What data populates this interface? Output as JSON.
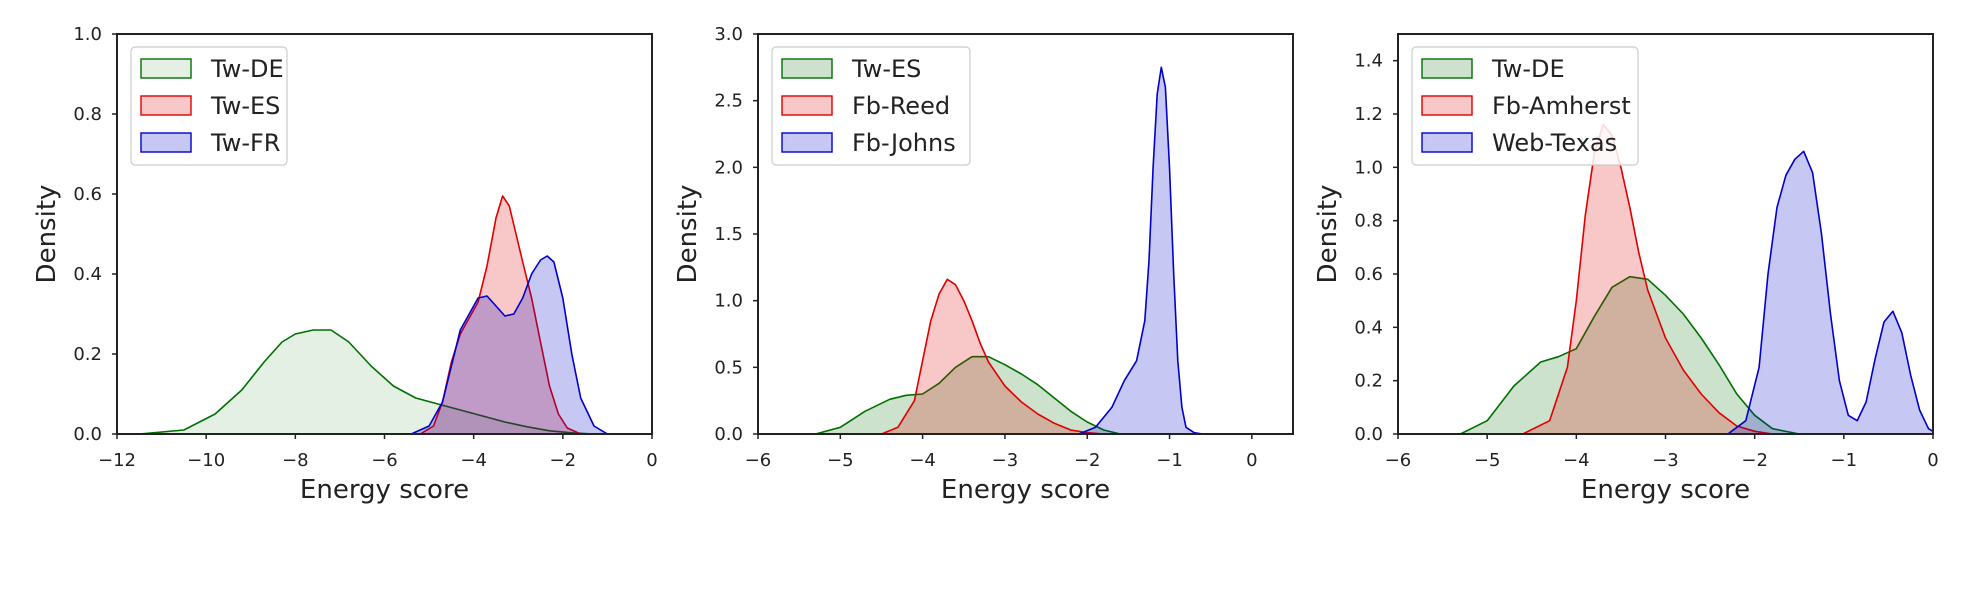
{
  "chart_data": [
    {
      "type": "area",
      "xlabel": "Energy score",
      "ylabel": "Density",
      "xlim": [
        -12,
        0
      ],
      "ylim": [
        0,
        1.0
      ],
      "xticks": [
        -12,
        -10,
        -8,
        -6,
        -4,
        -2,
        0
      ],
      "xtick_labels": [
        "−12",
        "−10",
        "−8",
        "−6",
        "−4",
        "−2",
        "0"
      ],
      "yticks": [
        0.0,
        0.2,
        0.4,
        0.6,
        0.8,
        1.0
      ],
      "ytick_labels": [
        "0.0",
        "0.2",
        "0.4",
        "0.6",
        "0.8",
        "1.0"
      ],
      "legend_position": "top-left",
      "grid": false,
      "series": [
        {
          "name": "Tw-DE",
          "color": "#007000",
          "fill_opacity": 0.1,
          "x": [
            -11.5,
            -10.5,
            -9.8,
            -9.2,
            -8.7,
            -8.3,
            -8.0,
            -7.6,
            -7.2,
            -6.8,
            -6.3,
            -5.8,
            -5.3,
            -4.8,
            -4.3,
            -3.8,
            -3.3,
            -2.8,
            -2.3,
            -1.8,
            -1.3
          ],
          "y": [
            0.0,
            0.01,
            0.05,
            0.11,
            0.18,
            0.23,
            0.25,
            0.26,
            0.26,
            0.23,
            0.17,
            0.12,
            0.09,
            0.075,
            0.06,
            0.045,
            0.03,
            0.018,
            0.008,
            0.003,
            0.0
          ]
        },
        {
          "name": "Tw-ES",
          "color": "#e00000",
          "fill_opacity": 0.22,
          "x": [
            -5.2,
            -4.9,
            -4.7,
            -4.5,
            -4.3,
            -4.1,
            -3.9,
            -3.7,
            -3.5,
            -3.35,
            -3.2,
            -3.05,
            -2.9,
            -2.7,
            -2.5,
            -2.3,
            -2.1,
            -1.9,
            -1.6
          ],
          "y": [
            0.0,
            0.02,
            0.08,
            0.18,
            0.25,
            0.29,
            0.33,
            0.42,
            0.54,
            0.595,
            0.57,
            0.5,
            0.43,
            0.34,
            0.23,
            0.12,
            0.05,
            0.015,
            0.0
          ]
        },
        {
          "name": "Tw-FR",
          "color": "#0000cc",
          "fill_opacity": 0.22,
          "x": [
            -5.4,
            -5.0,
            -4.7,
            -4.5,
            -4.3,
            -4.1,
            -3.9,
            -3.7,
            -3.5,
            -3.3,
            -3.1,
            -2.9,
            -2.7,
            -2.5,
            -2.35,
            -2.2,
            -2.0,
            -1.8,
            -1.6,
            -1.3,
            -1.0
          ],
          "y": [
            0.0,
            0.02,
            0.08,
            0.17,
            0.26,
            0.3,
            0.34,
            0.345,
            0.32,
            0.295,
            0.3,
            0.34,
            0.4,
            0.435,
            0.445,
            0.43,
            0.34,
            0.2,
            0.09,
            0.02,
            0.0
          ]
        }
      ]
    },
    {
      "type": "area",
      "xlabel": "Energy score",
      "ylabel": "Density",
      "xlim": [
        -6,
        0.5
      ],
      "ylim": [
        0,
        3.0
      ],
      "xticks": [
        -6,
        -5,
        -4,
        -3,
        -2,
        -1,
        0
      ],
      "xtick_labels": [
        "−6",
        "−5",
        "−4",
        "−3",
        "−2",
        "−1",
        "0"
      ],
      "yticks": [
        0.0,
        0.5,
        1.0,
        1.5,
        2.0,
        2.5,
        3.0
      ],
      "ytick_labels": [
        "0.0",
        "0.5",
        "1.0",
        "1.5",
        "2.0",
        "2.5",
        "3.0"
      ],
      "legend_position": "top-left",
      "grid": false,
      "series": [
        {
          "name": "Tw-ES",
          "color": "#007000",
          "fill_opacity": 0.2,
          "x": [
            -5.3,
            -5.0,
            -4.7,
            -4.4,
            -4.2,
            -4.0,
            -3.8,
            -3.6,
            -3.4,
            -3.2,
            -3.0,
            -2.8,
            -2.6,
            -2.4,
            -2.2,
            -2.0,
            -1.8,
            -1.6
          ],
          "y": [
            0.0,
            0.05,
            0.17,
            0.26,
            0.29,
            0.3,
            0.38,
            0.5,
            0.58,
            0.58,
            0.52,
            0.45,
            0.37,
            0.27,
            0.17,
            0.09,
            0.03,
            0.0
          ]
        },
        {
          "name": "Fb-Reed",
          "color": "#e00000",
          "fill_opacity": 0.22,
          "x": [
            -4.5,
            -4.3,
            -4.1,
            -4.0,
            -3.9,
            -3.8,
            -3.7,
            -3.6,
            -3.5,
            -3.4,
            -3.3,
            -3.2,
            -3.0,
            -2.8,
            -2.6,
            -2.4,
            -2.2,
            -2.0,
            -1.8
          ],
          "y": [
            0.0,
            0.05,
            0.25,
            0.55,
            0.85,
            1.05,
            1.16,
            1.12,
            1.0,
            0.85,
            0.68,
            0.54,
            0.36,
            0.24,
            0.15,
            0.08,
            0.03,
            0.01,
            0.0
          ]
        },
        {
          "name": "Fb-Johns",
          "color": "#0000cc",
          "fill_opacity": 0.22,
          "x": [
            -2.1,
            -1.9,
            -1.7,
            -1.55,
            -1.4,
            -1.3,
            -1.25,
            -1.2,
            -1.15,
            -1.1,
            -1.05,
            -1.0,
            -0.95,
            -0.9,
            -0.85,
            -0.8,
            -0.7,
            -0.6
          ],
          "y": [
            0.0,
            0.05,
            0.2,
            0.4,
            0.55,
            0.85,
            1.3,
            2.0,
            2.55,
            2.75,
            2.6,
            2.0,
            1.2,
            0.55,
            0.2,
            0.05,
            0.01,
            0.0
          ]
        }
      ]
    },
    {
      "type": "area",
      "xlabel": "Energy score",
      "ylabel": "Density",
      "xlim": [
        -6,
        0
      ],
      "ylim": [
        0,
        1.5
      ],
      "xticks": [
        -6,
        -5,
        -4,
        -3,
        -2,
        -1,
        0
      ],
      "xtick_labels": [
        "−6",
        "−5",
        "−4",
        "−3",
        "−2",
        "−1",
        "0"
      ],
      "yticks": [
        0.0,
        0.2,
        0.4,
        0.6,
        0.8,
        1.0,
        1.2,
        1.4
      ],
      "ytick_labels": [
        "0.0",
        "0.2",
        "0.4",
        "0.6",
        "0.8",
        "1.0",
        "1.2",
        "1.4"
      ],
      "legend_position": "top-left",
      "grid": false,
      "series": [
        {
          "name": "Tw-DE",
          "color": "#007000",
          "fill_opacity": 0.2,
          "x": [
            -5.3,
            -5.0,
            -4.7,
            -4.4,
            -4.2,
            -4.0,
            -3.8,
            -3.6,
            -3.4,
            -3.2,
            -3.0,
            -2.8,
            -2.6,
            -2.4,
            -2.2,
            -2.0,
            -1.8,
            -1.5
          ],
          "y": [
            0.0,
            0.05,
            0.18,
            0.27,
            0.29,
            0.32,
            0.44,
            0.55,
            0.59,
            0.58,
            0.52,
            0.45,
            0.36,
            0.26,
            0.15,
            0.07,
            0.02,
            0.0
          ]
        },
        {
          "name": "Fb-Amherst",
          "color": "#e00000",
          "fill_opacity": 0.22,
          "x": [
            -4.6,
            -4.3,
            -4.1,
            -4.0,
            -3.9,
            -3.8,
            -3.7,
            -3.6,
            -3.5,
            -3.4,
            -3.3,
            -3.2,
            -3.0,
            -2.8,
            -2.6,
            -2.4,
            -2.2,
            -2.0,
            -1.8
          ],
          "y": [
            0.0,
            0.05,
            0.25,
            0.5,
            0.82,
            1.05,
            1.16,
            1.12,
            1.0,
            0.85,
            0.68,
            0.54,
            0.36,
            0.24,
            0.15,
            0.08,
            0.03,
            0.01,
            0.0
          ]
        },
        {
          "name": "Web-Texas",
          "color": "#0000cc",
          "fill_opacity": 0.22,
          "x": [
            -2.3,
            -2.1,
            -1.95,
            -1.85,
            -1.75,
            -1.65,
            -1.55,
            -1.45,
            -1.35,
            -1.25,
            -1.15,
            -1.05,
            -0.95,
            -0.85,
            -0.75,
            -0.65,
            -0.55,
            -0.45,
            -0.35,
            -0.25,
            -0.15,
            -0.05,
            0.0
          ],
          "y": [
            0.0,
            0.05,
            0.25,
            0.6,
            0.85,
            0.97,
            1.03,
            1.06,
            0.98,
            0.75,
            0.45,
            0.2,
            0.07,
            0.05,
            0.12,
            0.28,
            0.42,
            0.46,
            0.38,
            0.22,
            0.09,
            0.02,
            0.01
          ]
        }
      ]
    }
  ]
}
